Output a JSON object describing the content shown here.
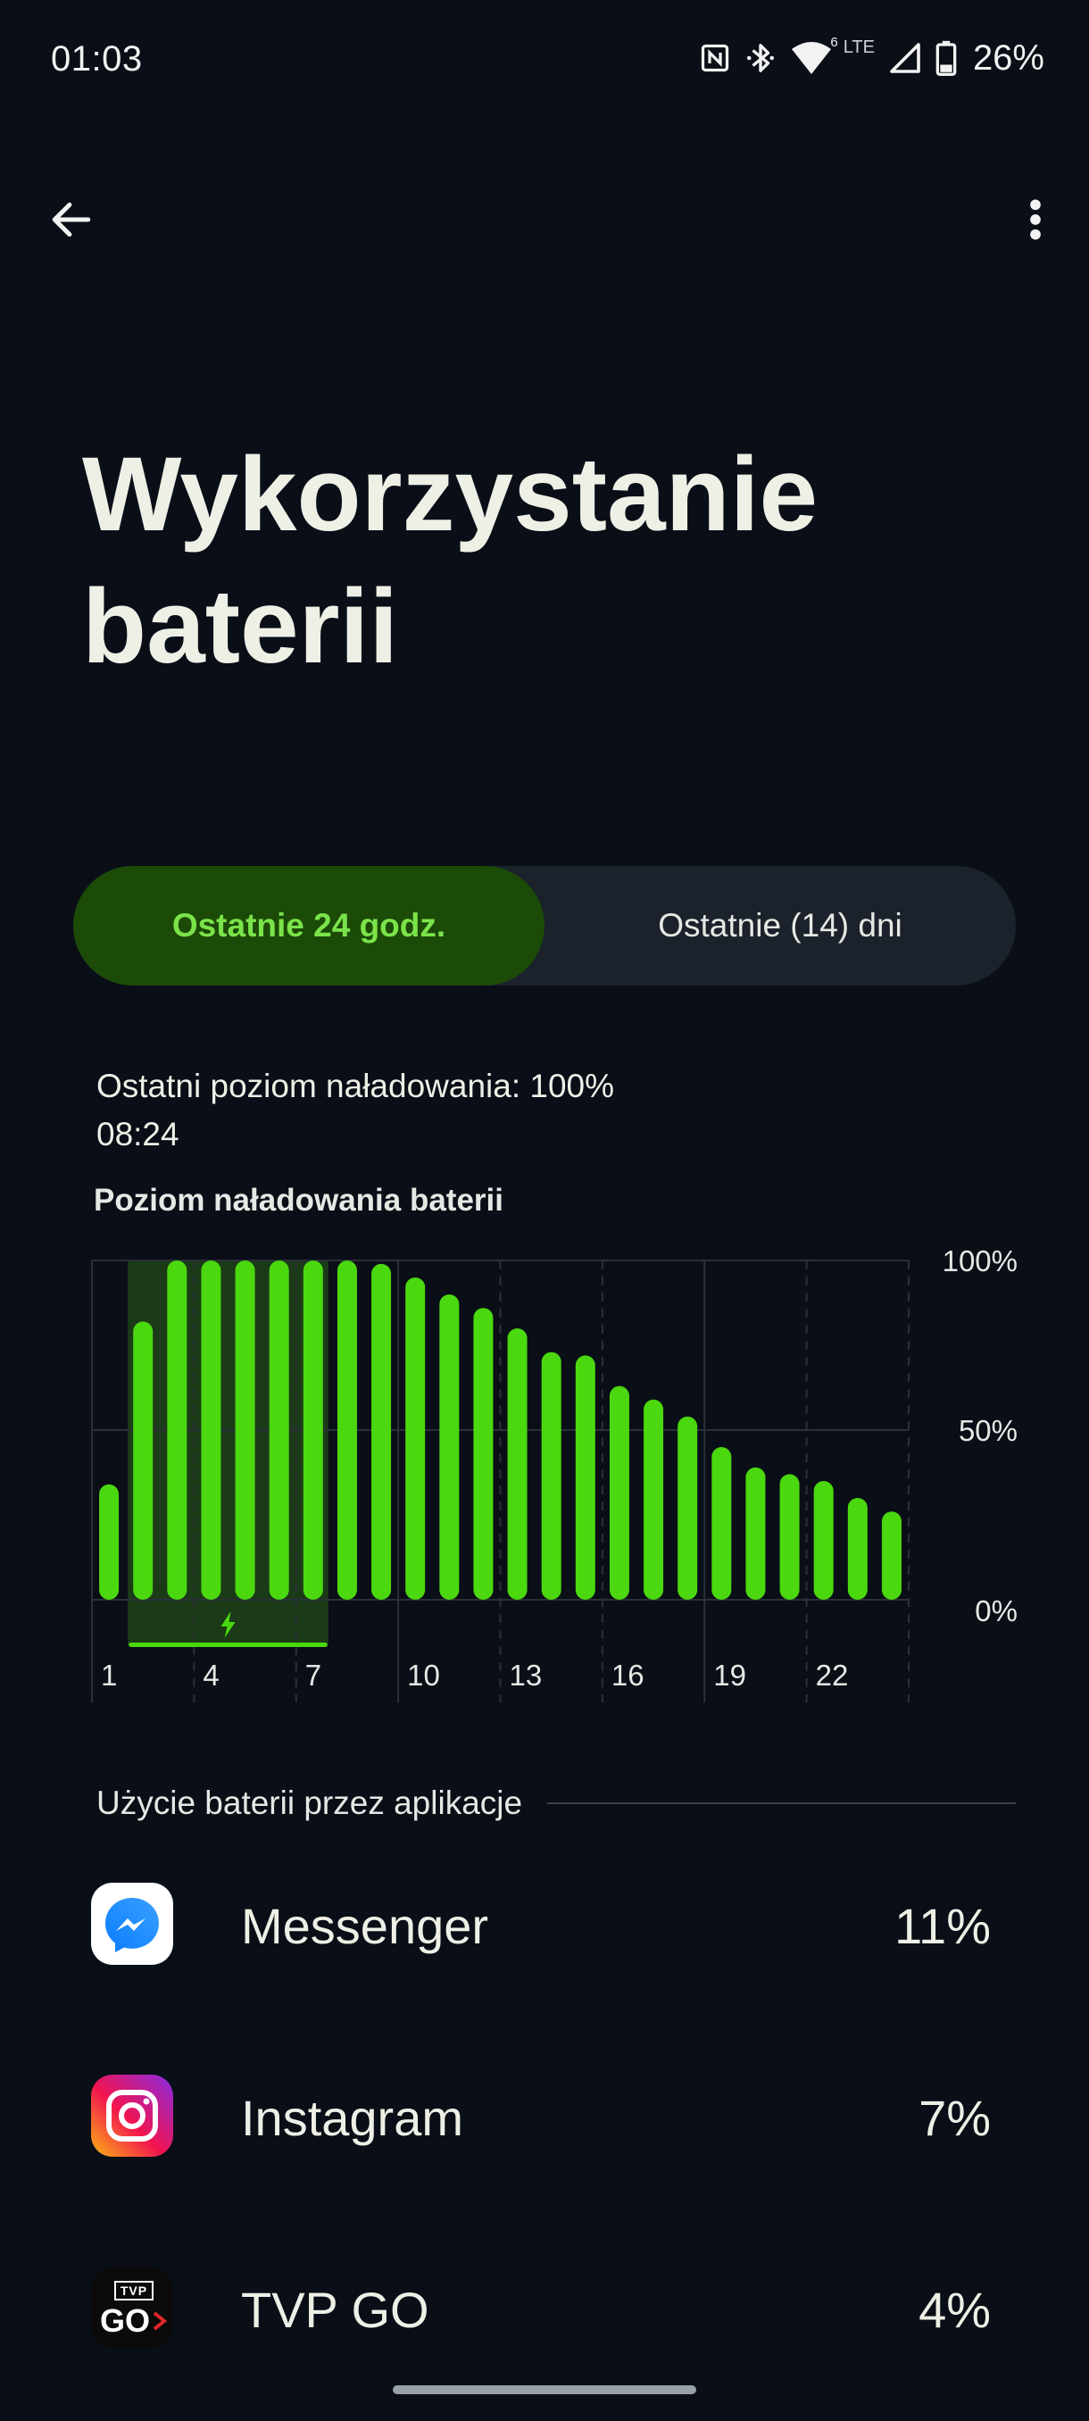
{
  "status_bar": {
    "time": "01:03",
    "icons": [
      "nfc-icon",
      "bluetooth-icon",
      "wifi-icon",
      "signal-icon",
      "battery-icon"
    ],
    "wifi_badge": "6",
    "lte_label": "LTE",
    "battery": "26%"
  },
  "app_bar": {
    "back_icon": "arrow-left-icon",
    "more_icon": "more-vert-icon"
  },
  "page": {
    "title_line1": "Wykorzystanie",
    "title_line2": "baterii"
  },
  "tabs": [
    {
      "label": "Ostatnie 24 godz.",
      "selected": true
    },
    {
      "label": "Ostatnie (14) dni",
      "selected": false
    }
  ],
  "last_charge": {
    "text": "Ostatni poziom naładowania: 100%",
    "time": "08:24"
  },
  "chart_data": {
    "type": "bar",
    "title": "Poziom naładowania baterii",
    "values": [
      34,
      82,
      100,
      100,
      100,
      100,
      100,
      100,
      99,
      95,
      90,
      86,
      80,
      73,
      72,
      63,
      59,
      54,
      45,
      39,
      37,
      35,
      30,
      26
    ],
    "x_tick_labels": [
      "1",
      "4",
      "7",
      "10",
      "13",
      "16",
      "19",
      "22"
    ],
    "y_tick_labels": [
      "100%",
      "50%",
      "0%"
    ],
    "ylim": [
      0,
      100
    ],
    "charging_period_bars": [
      1,
      6
    ],
    "charging_icon": "bolt-icon",
    "colors": {
      "bar": "#4bd80e",
      "charging_band": "#1b3a17",
      "grid": "#2a3038"
    }
  },
  "apps_section": {
    "title": "Użycie baterii przez aplikacje",
    "apps": [
      {
        "name": "Messenger",
        "percent": "11%",
        "icon": "messenger-icon"
      },
      {
        "name": "Instagram",
        "percent": "7%",
        "icon": "instagram-icon"
      },
      {
        "name": "TVP GO",
        "percent": "4%",
        "icon": "tvp-go-icon",
        "icon_text_top": "TVP",
        "icon_text_bottom": "GO"
      }
    ]
  }
}
